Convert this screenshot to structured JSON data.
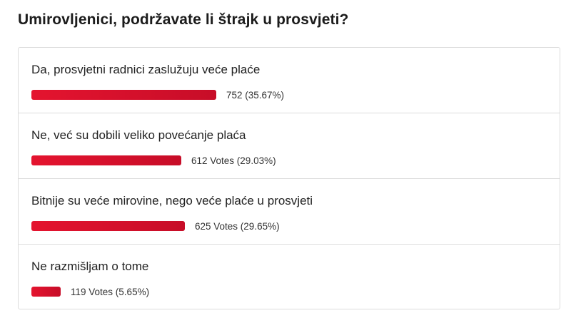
{
  "poll": {
    "title": "Umirovljenici, podržavate li štrajk u prosvjeti?",
    "bar_color": "#d40f2c",
    "options": [
      {
        "label": "Da, prosvjetni radnici zaslužuju veće plaće",
        "votes": 752,
        "percent": 35.67,
        "result_text": "752 (35.67%)"
      },
      {
        "label": "Ne, već su dobili veliko povećanje plaća",
        "votes": 612,
        "percent": 29.03,
        "result_text": "612 Votes (29.03%)"
      },
      {
        "label": "Bitnije su veće mirovine, nego veće plaće u prosvjeti",
        "votes": 625,
        "percent": 29.65,
        "result_text": "625 Votes (29.65%)"
      },
      {
        "label": "Ne razmišljam o tome",
        "votes": 119,
        "percent": 5.65,
        "result_text": "119 Votes (5.65%)"
      }
    ]
  }
}
